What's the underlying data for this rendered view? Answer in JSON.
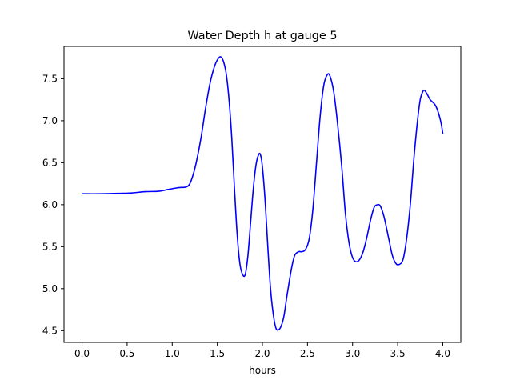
{
  "chart_data": {
    "type": "line",
    "title": "Water Depth h at gauge 5",
    "xlabel": "hours",
    "ylabel": "",
    "xlim": [
      -0.2,
      4.2
    ],
    "ylim": [
      4.36,
      7.885
    ],
    "xticks": [
      0.0,
      0.5,
      1.0,
      1.5,
      2.0,
      2.5,
      3.0,
      3.5,
      4.0
    ],
    "xtick_labels": [
      "0.0",
      "0.5",
      "1.0",
      "1.5",
      "2.0",
      "2.5",
      "3.0",
      "3.5",
      "4.0"
    ],
    "yticks": [
      4.5,
      5.0,
      5.5,
      6.0,
      6.5,
      7.0,
      7.5
    ],
    "ytick_labels": [
      "4.5",
      "5.0",
      "5.5",
      "6.0",
      "6.5",
      "7.0",
      "7.5"
    ],
    "grid": false,
    "legend": "none",
    "series": [
      {
        "color": "#0000ff",
        "points": [
          [
            0.0,
            6.13
          ],
          [
            0.2,
            6.13
          ],
          [
            0.4,
            6.135
          ],
          [
            0.55,
            6.14
          ],
          [
            0.7,
            6.155
          ],
          [
            0.85,
            6.16
          ],
          [
            0.95,
            6.18
          ],
          [
            1.05,
            6.2
          ],
          [
            1.1,
            6.205
          ],
          [
            1.15,
            6.21
          ],
          [
            1.19,
            6.24
          ],
          [
            1.23,
            6.35
          ],
          [
            1.27,
            6.52
          ],
          [
            1.32,
            6.8
          ],
          [
            1.37,
            7.15
          ],
          [
            1.42,
            7.45
          ],
          [
            1.47,
            7.65
          ],
          [
            1.51,
            7.74
          ],
          [
            1.54,
            7.76
          ],
          [
            1.57,
            7.7
          ],
          [
            1.6,
            7.55
          ],
          [
            1.63,
            7.25
          ],
          [
            1.66,
            6.8
          ],
          [
            1.69,
            6.2
          ],
          [
            1.72,
            5.65
          ],
          [
            1.75,
            5.3
          ],
          [
            1.78,
            5.17
          ],
          [
            1.81,
            5.17
          ],
          [
            1.84,
            5.4
          ],
          [
            1.87,
            5.8
          ],
          [
            1.9,
            6.2
          ],
          [
            1.93,
            6.48
          ],
          [
            1.96,
            6.6
          ],
          [
            1.98,
            6.59
          ],
          [
            2.0,
            6.45
          ],
          [
            2.03,
            6.05
          ],
          [
            2.06,
            5.5
          ],
          [
            2.09,
            5.0
          ],
          [
            2.12,
            4.7
          ],
          [
            2.15,
            4.53
          ],
          [
            2.18,
            4.51
          ],
          [
            2.21,
            4.56
          ],
          [
            2.24,
            4.68
          ],
          [
            2.27,
            4.9
          ],
          [
            2.3,
            5.1
          ],
          [
            2.33,
            5.28
          ],
          [
            2.36,
            5.4
          ],
          [
            2.4,
            5.44
          ],
          [
            2.44,
            5.44
          ],
          [
            2.48,
            5.47
          ],
          [
            2.52,
            5.6
          ],
          [
            2.56,
            5.95
          ],
          [
            2.6,
            6.5
          ],
          [
            2.64,
            7.05
          ],
          [
            2.68,
            7.42
          ],
          [
            2.72,
            7.55
          ],
          [
            2.75,
            7.53
          ],
          [
            2.79,
            7.35
          ],
          [
            2.83,
            7.0
          ],
          [
            2.88,
            6.45
          ],
          [
            2.92,
            5.9
          ],
          [
            2.96,
            5.55
          ],
          [
            3.0,
            5.37
          ],
          [
            3.04,
            5.32
          ],
          [
            3.08,
            5.35
          ],
          [
            3.12,
            5.45
          ],
          [
            3.16,
            5.62
          ],
          [
            3.2,
            5.82
          ],
          [
            3.24,
            5.97
          ],
          [
            3.28,
            6.0
          ],
          [
            3.31,
            5.98
          ],
          [
            3.35,
            5.85
          ],
          [
            3.4,
            5.6
          ],
          [
            3.44,
            5.4
          ],
          [
            3.48,
            5.3
          ],
          [
            3.52,
            5.29
          ],
          [
            3.56,
            5.35
          ],
          [
            3.6,
            5.6
          ],
          [
            3.64,
            6.0
          ],
          [
            3.68,
            6.55
          ],
          [
            3.72,
            7.0
          ],
          [
            3.75,
            7.25
          ],
          [
            3.78,
            7.35
          ],
          [
            3.8,
            7.36
          ],
          [
            3.83,
            7.31
          ],
          [
            3.86,
            7.25
          ],
          [
            3.89,
            7.22
          ],
          [
            3.92,
            7.18
          ],
          [
            3.95,
            7.1
          ],
          [
            3.98,
            6.98
          ],
          [
            4.0,
            6.85
          ]
        ]
      }
    ]
  }
}
